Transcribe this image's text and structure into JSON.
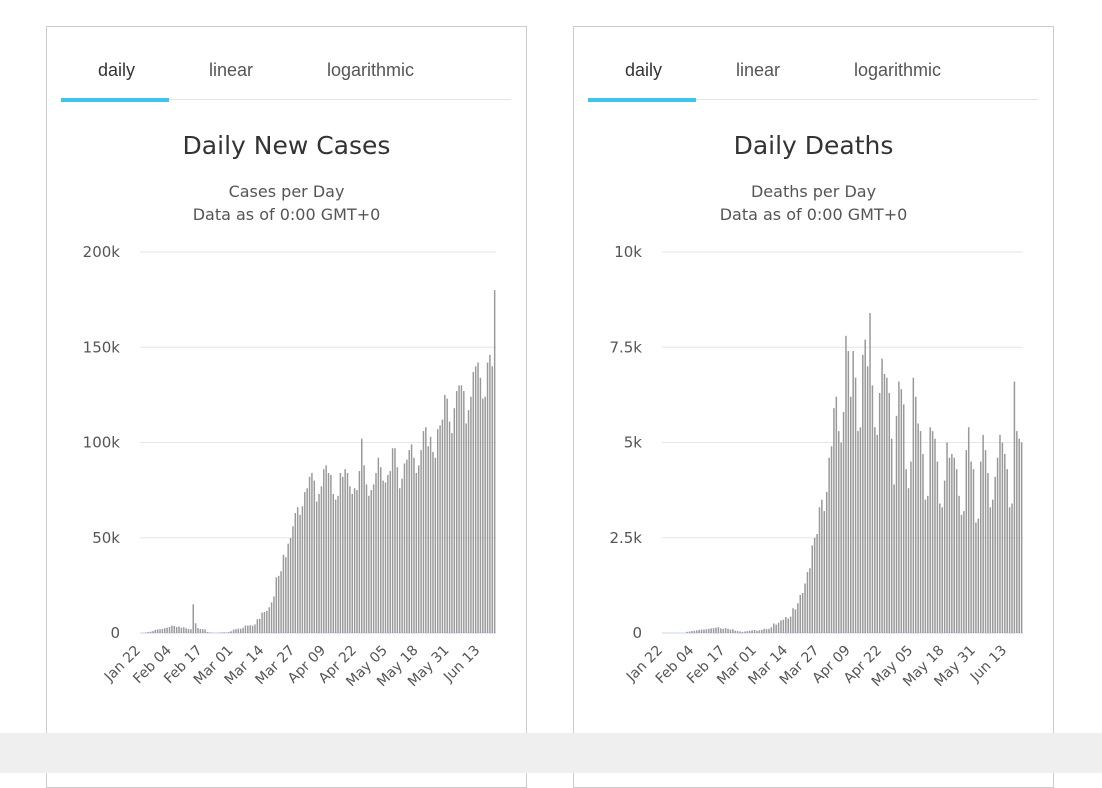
{
  "tabs": [
    "daily",
    "linear",
    "logarithmic"
  ],
  "chart_data": [
    {
      "type": "bar",
      "title": "Daily New Cases",
      "subtitle": "Cases per Day",
      "subtitle2": "Data as of 0:00 GMT+0",
      "start_date": "Jan 22",
      "ylim": [
        0,
        200000
      ],
      "yticks": [
        "0",
        "50k",
        "100k",
        "150k",
        "200k"
      ],
      "xticks": [
        "Jan 22",
        "Feb 04",
        "Feb 17",
        "Mar 01",
        "Mar 14",
        "Mar 27",
        "Apr 09",
        "Apr 22",
        "May 05",
        "May 18",
        "May 31",
        "Jun 13"
      ],
      "values": [
        0,
        100,
        300,
        500,
        700,
        1000,
        1700,
        1900,
        2000,
        2100,
        2600,
        2800,
        3200,
        3900,
        3700,
        3200,
        3400,
        2800,
        3000,
        2500,
        2100,
        2000,
        15100,
        5100,
        2600,
        2100,
        2000,
        1900,
        500,
        300,
        200,
        100,
        100,
        200,
        300,
        400,
        300,
        500,
        900,
        1800,
        2000,
        2300,
        2200,
        2800,
        3900,
        3900,
        4100,
        3800,
        4500,
        7200,
        7400,
        10700,
        11000,
        11600,
        13500,
        16100,
        19200,
        29200,
        30000,
        32400,
        41100,
        39800,
        46900,
        49900,
        56000,
        63000,
        66000,
        62000,
        66500,
        74000,
        76000,
        82000,
        84000,
        80000,
        69000,
        73000,
        77000,
        86000,
        88000,
        84000,
        83000,
        73000,
        70000,
        72000,
        84000,
        82000,
        86000,
        84000,
        77000,
        73000,
        76000,
        75000,
        85000,
        102000,
        88000,
        78000,
        72000,
        75000,
        78000,
        84000,
        92000,
        87000,
        80000,
        79000,
        83000,
        85000,
        97000,
        97000,
        87000,
        76000,
        81000,
        89000,
        91000,
        96000,
        99000,
        92000,
        84000,
        88000,
        96000,
        106000,
        108000,
        98000,
        103000,
        95000,
        92000,
        107000,
        109000,
        112000,
        125000,
        123000,
        111000,
        105000,
        118000,
        127000,
        130000,
        130000,
        127000,
        110000,
        117000,
        124000,
        137000,
        140000,
        142000,
        134000,
        123000,
        124000,
        142000,
        146000,
        140000,
        180000
      ]
    },
    {
      "type": "bar",
      "title": "Daily Deaths",
      "subtitle": "Deaths per Day",
      "subtitle2": "Data as of 0:00 GMT+0",
      "start_date": "Jan 22",
      "ylim": [
        0,
        10000
      ],
      "yticks": [
        "0",
        "2.5k",
        "5k",
        "7.5k",
        "10k"
      ],
      "xticks": [
        "Jan 22",
        "Feb 04",
        "Feb 17",
        "Mar 01",
        "Mar 14",
        "Mar 27",
        "Apr 09",
        "Apr 22",
        "May 05",
        "May 18",
        "May 31",
        "Jun 13"
      ],
      "values": [
        0,
        0,
        0,
        0,
        0,
        0,
        0,
        0,
        0,
        0,
        30,
        40,
        50,
        60,
        70,
        80,
        90,
        90,
        100,
        110,
        120,
        130,
        140,
        150,
        120,
        110,
        130,
        110,
        90,
        100,
        60,
        50,
        40,
        30,
        40,
        50,
        60,
        70,
        80,
        60,
        70,
        80,
        110,
        100,
        110,
        150,
        250,
        220,
        270,
        330,
        350,
        420,
        380,
        430,
        650,
        620,
        780,
        1000,
        1050,
        1300,
        1600,
        1700,
        2300,
        2500,
        2600,
        3300,
        3500,
        3200,
        3700,
        4600,
        4900,
        5900,
        6200,
        5300,
        5000,
        5800,
        7800,
        7400,
        6200,
        7400,
        6700,
        5300,
        5400,
        7300,
        7700,
        7000,
        8400,
        6500,
        5400,
        5200,
        6300,
        7200,
        6800,
        6700,
        6300,
        5100,
        3900,
        5700,
        6600,
        6400,
        6000,
        4300,
        3800,
        4500,
        6700,
        6200,
        5500,
        5300,
        4700,
        3500,
        3600,
        5400,
        5300,
        5100,
        4500,
        3400,
        3300,
        4000,
        5000,
        4600,
        4700,
        4600,
        4300,
        3600,
        3100,
        3200,
        4800,
        5400,
        4500,
        4300,
        2900,
        3000,
        4500,
        5200,
        4800,
        4200,
        3300,
        3500,
        4100,
        4600,
        5200,
        5000,
        4700,
        4300,
        3300,
        3400,
        6600,
        5300,
        5100,
        5000
      ]
    }
  ]
}
